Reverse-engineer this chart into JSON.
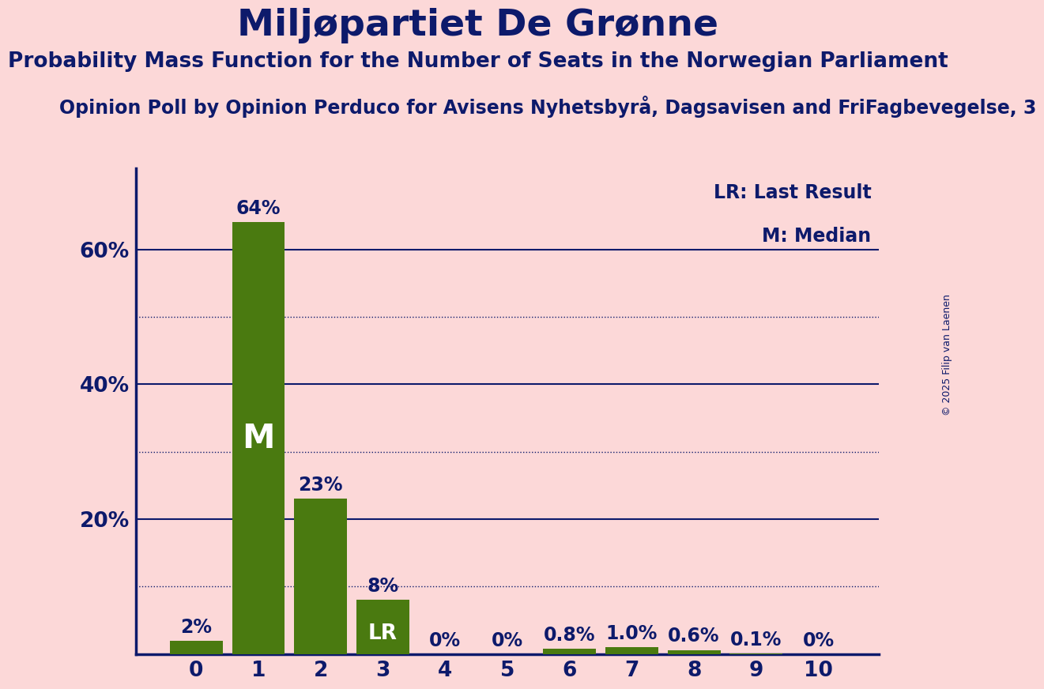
{
  "title": "Miljøpartiet De Grønne",
  "subtitle": "Probability Mass Function for the Number of Seats in the Norwegian Parliament",
  "poll_line": "Opinion Poll by Opinion Perduco for Avisens Nyhetsbyrå, Dagsavisen and FriFagbevegelse, 3",
  "copyright": "© 2025 Filip van Laenen",
  "categories": [
    0,
    1,
    2,
    3,
    4,
    5,
    6,
    7,
    8,
    9,
    10
  ],
  "values": [
    0.02,
    0.64,
    0.23,
    0.08,
    0.0,
    0.0,
    0.008,
    0.01,
    0.006,
    0.001,
    0.0
  ],
  "bar_color": "#4a7a10",
  "background_color": "#fcd8d8",
  "text_color": "#0d1a6b",
  "median_bar": 1,
  "lr_bar": 3,
  "legend_lr": "LR: Last Result",
  "legend_m": "M: Median",
  "ylim": [
    0,
    0.72
  ],
  "yticks": [
    0.0,
    0.2,
    0.4,
    0.6
  ],
  "ytick_labels": [
    "",
    "20%",
    "40%",
    "60%"
  ],
  "dotted_yticks": [
    0.1,
    0.3,
    0.5
  ],
  "title_fontsize": 34,
  "subtitle_fontsize": 19,
  "poll_fontsize": 17,
  "label_fontsize": 17,
  "tick_fontsize": 19,
  "value_labels": [
    "2%",
    "64%",
    "23%",
    "8%",
    "0%",
    "0%",
    "0.8%",
    "1.0%",
    "0.6%",
    "0.1%",
    "0%"
  ]
}
